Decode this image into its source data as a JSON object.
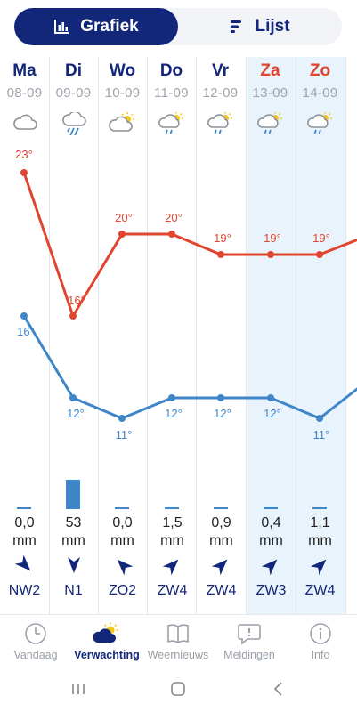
{
  "toggle": {
    "chart_label": "Grafiek",
    "list_label": "Lijst"
  },
  "days": [
    {
      "name": "Ma",
      "date": "08-09",
      "weekend": false,
      "icon": "cloud-icon",
      "precip": "0,0",
      "precip_value": 0.0,
      "wind": "NW2",
      "wind_dir_deg": 135
    },
    {
      "name": "Di",
      "date": "09-09",
      "weekend": false,
      "icon": "cloud-rain-icon",
      "precip": "53",
      "precip_value": 53,
      "wind": "N1",
      "wind_dir_deg": 180
    },
    {
      "name": "Wo",
      "date": "10-09",
      "weekend": false,
      "icon": "partly-sunny-icon",
      "precip": "0,0",
      "precip_value": 0.0,
      "wind": "ZO2",
      "wind_dir_deg": 315
    },
    {
      "name": "Do",
      "date": "11-09",
      "weekend": false,
      "icon": "sun-cloud-rain-icon",
      "precip": "1,5",
      "precip_value": 1.5,
      "wind": "ZW4",
      "wind_dir_deg": 45
    },
    {
      "name": "Vr",
      "date": "12-09",
      "weekend": false,
      "icon": "sun-cloud-rain-icon",
      "precip": "0,9",
      "precip_value": 0.9,
      "wind": "ZW4",
      "wind_dir_deg": 45
    },
    {
      "name": "Za",
      "date": "13-09",
      "weekend": true,
      "icon": "sun-cloud-rain-icon",
      "precip": "0,4",
      "precip_value": 0.4,
      "wind": "ZW3",
      "wind_dir_deg": 45
    },
    {
      "name": "Zo",
      "date": "14-09",
      "weekend": true,
      "icon": "sun-cloud-rain-icon",
      "precip": "1,1",
      "precip_value": 1.1,
      "wind": "ZW4",
      "wind_dir_deg": 45
    }
  ],
  "precip_unit": "mm",
  "chart_data": {
    "type": "line",
    "x": [
      "Ma",
      "Di",
      "Wo",
      "Do",
      "Vr",
      "Za",
      "Zo"
    ],
    "series": [
      {
        "key": "max",
        "values": [
          23,
          16,
          20,
          20,
          19,
          19,
          19
        ],
        "labels": [
          "23°",
          "16°",
          "20°",
          "20°",
          "19°",
          "19°",
          "19°"
        ],
        "color": "#e2452f"
      },
      {
        "key": "min",
        "values": [
          16,
          12,
          11,
          12,
          12,
          12,
          11
        ],
        "labels": [
          "16°",
          "12°",
          "11°",
          "12°",
          "12°",
          "12°",
          "11°"
        ],
        "color": "#3f85c9"
      }
    ],
    "grid": false
  },
  "nav": [
    {
      "label": "Vandaag",
      "icon": "clock-icon",
      "active": false
    },
    {
      "label": "Verwachting",
      "icon": "forecast-icon",
      "active": true
    },
    {
      "label": "Weernieuws",
      "icon": "book-icon",
      "active": false
    },
    {
      "label": "Meldingen",
      "icon": "alert-bubble-icon",
      "active": false
    },
    {
      "label": "Info",
      "icon": "info-icon",
      "active": false
    }
  ],
  "colors": {
    "brand": "#12267a",
    "max": "#e2452f",
    "min": "#3f85c9",
    "weekend_bg": "#e8f3fb"
  }
}
